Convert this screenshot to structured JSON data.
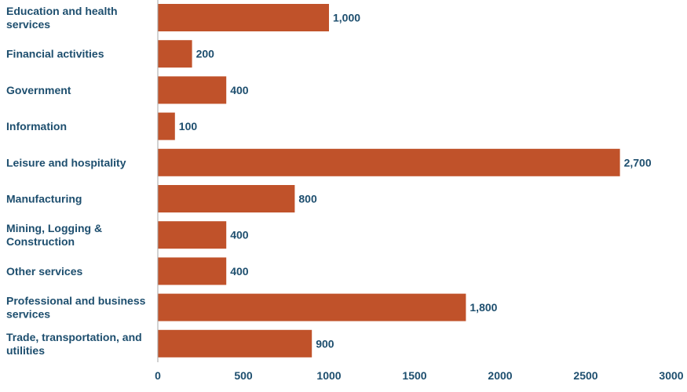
{
  "chart_data": {
    "type": "bar",
    "orientation": "horizontal",
    "categories": [
      [
        "Education and health",
        "services"
      ],
      [
        "Financial activities"
      ],
      [
        "Government"
      ],
      [
        "Information"
      ],
      [
        "Leisure and hospitality"
      ],
      [
        "Manufacturing"
      ],
      [
        "Mining, Logging &",
        "Construction"
      ],
      [
        "Other services"
      ],
      [
        "Professional and business",
        "services"
      ],
      [
        "Trade, transportation, and",
        "utilities"
      ]
    ],
    "values": [
      1000,
      200,
      400,
      100,
      2700,
      800,
      400,
      400,
      1800,
      900
    ],
    "value_labels": [
      "1,000",
      "200",
      "400",
      "100",
      "2,700",
      "800",
      "400",
      "400",
      "1,800",
      "900"
    ],
    "xlim": [
      0,
      3000
    ],
    "xticks": [
      0,
      500,
      1000,
      1500,
      2000,
      2500,
      3000
    ],
    "grid": false,
    "colors": {
      "bar": "#c0522a",
      "text": "#1d4e6e",
      "axis": "#a6a6a6"
    }
  }
}
